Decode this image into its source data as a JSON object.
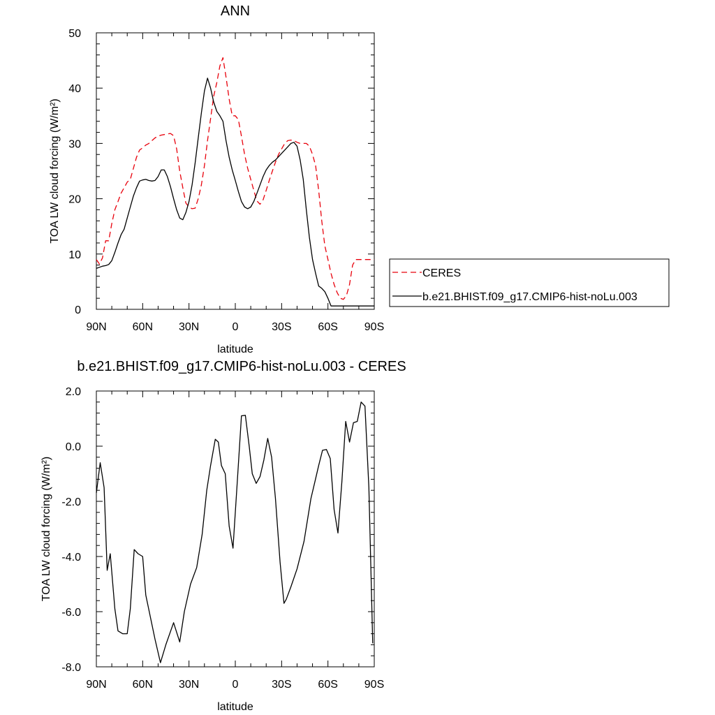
{
  "chart_data": [
    {
      "type": "line",
      "title": "ANN",
      "xlabel": "latitude",
      "ylabel": "TOA LW cloud forcing (W/m²)",
      "ylim": [
        0,
        50
      ],
      "xlim": [
        90,
        -90
      ],
      "x_ticks": [
        {
          "value": 90,
          "label": "90N"
        },
        {
          "value": 60,
          "label": "60N"
        },
        {
          "value": 30,
          "label": "30N"
        },
        {
          "value": 0,
          "label": "0"
        },
        {
          "value": -30,
          "label": "30S"
        },
        {
          "value": -60,
          "label": "60S"
        },
        {
          "value": -90,
          "label": "90S"
        }
      ],
      "y_ticks": [
        {
          "value": 0,
          "label": "0"
        },
        {
          "value": 10,
          "label": "10"
        },
        {
          "value": 20,
          "label": "20"
        },
        {
          "value": 30,
          "label": "30"
        },
        {
          "value": 40,
          "label": "40"
        },
        {
          "value": 50,
          "label": "50"
        }
      ],
      "grid": false,
      "legend_position": "right",
      "series": [
        {
          "name": "CERES",
          "color": "#e8000b",
          "dash": "dashed",
          "x": [
            90,
            88,
            86,
            84,
            82,
            80,
            78,
            76,
            74,
            72,
            70,
            68,
            66,
            64,
            62,
            60,
            58,
            56,
            54,
            52,
            50,
            48,
            46,
            44,
            42,
            40,
            38,
            36,
            34,
            32,
            30,
            28,
            26,
            24,
            22,
            20,
            18,
            16,
            14,
            12,
            10,
            8,
            6,
            4,
            2,
            0,
            -2,
            -4,
            -6,
            -8,
            -10,
            -12,
            -14,
            -16,
            -18,
            -20,
            -22,
            -24,
            -26,
            -28,
            -30,
            -32,
            -34,
            -36,
            -38,
            -40,
            -42,
            -44,
            -46,
            -48,
            -50,
            -52,
            -54,
            -56,
            -58,
            -60,
            -62,
            -64,
            -66,
            -68,
            -70,
            -72,
            -74,
            -76,
            -78,
            -80,
            -82,
            -84,
            -86,
            -88,
            -90
          ],
          "y": [
            9.0,
            8.2,
            9.3,
            12.4,
            12.4,
            15.5,
            18.0,
            19.5,
            21.0,
            22.0,
            23.0,
            23.5,
            25.5,
            27.5,
            28.8,
            29.2,
            29.7,
            30.0,
            30.5,
            31.0,
            31.3,
            31.5,
            31.6,
            31.7,
            31.8,
            31.4,
            29.0,
            25.0,
            22.0,
            19.2,
            18.5,
            18.2,
            18.3,
            20.0,
            22.5,
            26.0,
            30.5,
            34.5,
            38.5,
            41.0,
            44.0,
            45.5,
            42.0,
            38.0,
            35.0,
            35.0,
            34.3,
            31.3,
            28.0,
            25.5,
            23.5,
            21.5,
            19.6,
            19.0,
            19.8,
            21.5,
            23.3,
            25.0,
            26.6,
            28.0,
            29.0,
            30.0,
            30.5,
            30.6,
            30.5,
            30.2,
            30.0,
            30.0,
            30.0,
            29.5,
            28.0,
            26.0,
            21.5,
            16.0,
            11.5,
            9.0,
            6.5,
            4.5,
            3.0,
            2.0,
            1.8,
            2.5,
            4.5,
            8.0,
            9.0,
            9.0,
            9.0,
            9.0,
            9.0,
            9.0,
            9.0
          ]
        },
        {
          "name": "b.e21.BHIST.f09_g17.CMIP6-hist-noLu.003",
          "color": "#000000",
          "dash": "solid",
          "x": [
            90,
            88,
            86,
            84,
            82,
            80,
            78,
            76,
            74,
            72,
            70,
            68,
            66,
            64,
            62,
            60,
            58,
            56,
            54,
            52,
            50,
            48,
            46,
            44,
            42,
            40,
            38,
            36,
            34,
            32,
            30,
            28,
            26,
            24,
            22,
            20,
            18,
            16,
            14,
            12,
            10,
            8,
            6,
            4,
            2,
            0,
            -2,
            -4,
            -6,
            -8,
            -10,
            -12,
            -14,
            -16,
            -18,
            -20,
            -22,
            -24,
            -26,
            -28,
            -30,
            -32,
            -34,
            -36,
            -38,
            -40,
            -42,
            -44,
            -46,
            -48,
            -50,
            -52,
            -54,
            -56,
            -58,
            -60,
            -62,
            -64,
            -66,
            -68,
            -70,
            -72,
            -74,
            -76,
            -78,
            -80,
            -82,
            -84,
            -86,
            -88,
            -90
          ],
          "y": [
            7.4,
            7.6,
            7.8,
            7.9,
            8.1,
            8.8,
            10.3,
            12.0,
            13.5,
            14.5,
            16.5,
            18.5,
            20.5,
            22.0,
            23.2,
            23.4,
            23.5,
            23.3,
            23.2,
            23.3,
            24.0,
            25.2,
            25.2,
            24.0,
            22.2,
            20.0,
            18.0,
            16.5,
            16.2,
            17.5,
            19.5,
            22.5,
            26.5,
            31.0,
            35.5,
            39.5,
            41.8,
            40.0,
            37.5,
            35.8,
            35.0,
            34.0,
            30.5,
            27.5,
            25.2,
            23.3,
            21.3,
            19.5,
            18.5,
            18.2,
            18.5,
            19.5,
            21.0,
            22.5,
            24.0,
            25.2,
            26.0,
            26.6,
            27.0,
            27.6,
            28.2,
            28.8,
            29.4,
            30.0,
            30.2,
            29.5,
            27.0,
            23.5,
            18.0,
            13.0,
            9.0,
            6.5,
            4.2,
            3.8,
            3.2,
            2.0,
            0.6,
            0.6,
            0.6,
            0.6,
            0.6,
            0.6,
            0.6,
            0.6,
            0.6,
            0.6,
            0.6,
            0.6,
            0.6,
            0.6,
            0.6
          ]
        }
      ]
    },
    {
      "type": "line",
      "title": "b.e21.BHIST.f09_g17.CMIP6-hist-noLu.003 - CERES",
      "xlabel": "latitude",
      "ylabel": "TOA LW cloud forcing (W/m²)",
      "ylim": [
        -8,
        2
      ],
      "xlim": [
        90,
        -90
      ],
      "x_ticks": [
        {
          "value": 90,
          "label": "90N"
        },
        {
          "value": 60,
          "label": "60N"
        },
        {
          "value": 30,
          "label": "30N"
        },
        {
          "value": 0,
          "label": "0"
        },
        {
          "value": -30,
          "label": "30S"
        },
        {
          "value": -60,
          "label": "60S"
        },
        {
          "value": -90,
          "label": "90S"
        }
      ],
      "y_ticks": [
        {
          "value": -8,
          "label": "-8.0"
        },
        {
          "value": -6,
          "label": "-6.0"
        },
        {
          "value": -4,
          "label": "-4.0"
        },
        {
          "value": -2,
          "label": "-2.0"
        },
        {
          "value": 0,
          "label": "0.0"
        },
        {
          "value": 2,
          "label": "2.0"
        }
      ],
      "grid": false,
      "series": [
        {
          "color": "#000000",
          "dash": "solid",
          "x": [
            90,
            87.5,
            85,
            83,
            81,
            78,
            76,
            73,
            70,
            68,
            65.5,
            63,
            60,
            58,
            55,
            52,
            48.5,
            45,
            40,
            36,
            33,
            29,
            25,
            21.5,
            18.5,
            16,
            13,
            11,
            9,
            6.5,
            4,
            1.5,
            -1.5,
            -4,
            -6.5,
            -9,
            -11,
            -13.5,
            -16,
            -18.5,
            -21,
            -23.5,
            -26,
            -29,
            -31.5,
            -33,
            -36,
            -40,
            -44.5,
            -49,
            -51.5,
            -54,
            -56.5,
            -59,
            -61.5,
            -64,
            -66.5,
            -69,
            -71.5,
            -74,
            -76.5,
            -79,
            -81.5,
            -84,
            -86.5,
            -89
          ],
          "y": [
            -1.7,
            -0.6,
            -1.5,
            -4.5,
            -3.9,
            -5.9,
            -6.7,
            -6.8,
            -6.8,
            -5.9,
            -3.75,
            -3.9,
            -4.0,
            -5.4,
            -6.2,
            -7.0,
            -7.85,
            -7.2,
            -6.4,
            -7.1,
            -6.0,
            -5.0,
            -4.4,
            -3.2,
            -1.6,
            -0.7,
            0.25,
            0.15,
            -0.7,
            -1.0,
            -2.9,
            -3.7,
            -1.1,
            1.1,
            1.12,
            0.0,
            -1.0,
            -1.35,
            -1.1,
            -0.5,
            0.28,
            -0.4,
            -1.9,
            -4.2,
            -5.7,
            -5.55,
            -5.1,
            -4.45,
            -3.45,
            -1.9,
            -1.3,
            -0.7,
            -0.15,
            -0.12,
            -0.45,
            -2.3,
            -3.15,
            -1.3,
            0.9,
            0.15,
            0.85,
            0.9,
            1.6,
            1.45,
            -1.5,
            -7.15
          ]
        }
      ]
    }
  ]
}
